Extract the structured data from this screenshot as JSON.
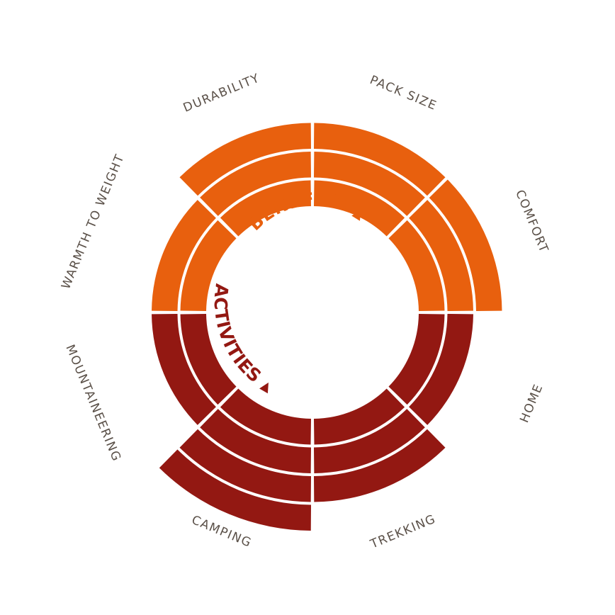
{
  "chart_data": {
    "type": "radial-stacked-bar",
    "levels": 4,
    "colors": {
      "benefits": "#e8600e",
      "activities": "#931812",
      "label": "#5a5048",
      "background": "#ffffff"
    },
    "groups": [
      {
        "name": "BENEFITS",
        "color": "#e8600e",
        "marker": "▲"
      },
      {
        "name": "ACTIVITIES",
        "color": "#931812",
        "marker": "▲"
      }
    ],
    "segments": [
      {
        "label": "WARMTH TO WEIGHT",
        "group": "BENEFITS",
        "value": 2
      },
      {
        "label": "DURABILITY",
        "group": "BENEFITS",
        "value": 3
      },
      {
        "label": "PACK SIZE",
        "group": "BENEFITS",
        "value": 3
      },
      {
        "label": "COMFORT",
        "group": "BENEFITS",
        "value": 3
      },
      {
        "label": "HOME",
        "group": "ACTIVITIES",
        "value": 2
      },
      {
        "label": "TREKKING",
        "group": "ACTIVITIES",
        "value": 3
      },
      {
        "label": "CAMPING",
        "group": "ACTIVITIES",
        "value": 4
      },
      {
        "label": "MOUNTAINEERING",
        "group": "ACTIVITIES",
        "value": 2
      }
    ]
  }
}
